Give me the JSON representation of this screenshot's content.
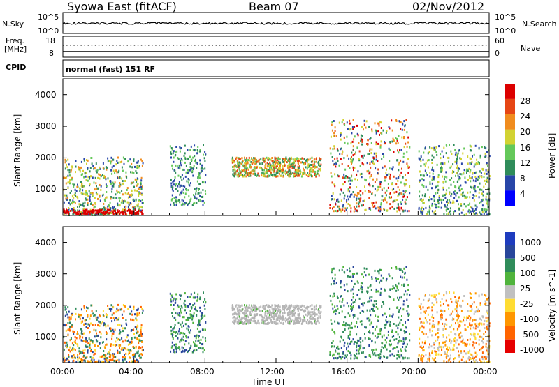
{
  "header": {
    "station": "Syowa East (fitACF)",
    "beam": "Beam 07",
    "date": "02/Nov/2012"
  },
  "noise_panel": {
    "left_label": "N.Sky",
    "right_label": "N.Search",
    "left_ticks": [
      "10^5",
      "10^0"
    ],
    "right_ticks": [
      "10^5",
      "10^0"
    ]
  },
  "freq_panel": {
    "left_label_line1": "Freq.",
    "left_label_line2": "[MHz]",
    "right_label": "Nave",
    "left_ticks": [
      "18",
      "8"
    ],
    "right_ticks": [
      "60",
      "0"
    ]
  },
  "cpid_panel": {
    "label": "CPID",
    "mode": "normal (fast) 151 RF"
  },
  "colors": {
    "power_scale": [
      "#0000ff",
      "#2846a8",
      "#2f8c5a",
      "#64c85a",
      "#d2d232",
      "#f08c1e",
      "#e64614",
      "#dc0000"
    ],
    "velocity_scale": [
      "#1e3cbe",
      "#28469b",
      "#2f8c5a",
      "#50b43c",
      "#c0c0c0",
      "#ffdc32",
      "#ff9600",
      "#ff6400",
      "#e60000"
    ],
    "ground_scatter": "#b4b4b4"
  },
  "chart_data": [
    {
      "type": "heatmap",
      "panel": "power",
      "xlabel": "",
      "ylabel": "Slant Range [km]",
      "ylim": [
        180,
        4500
      ],
      "yticks": [
        "1000",
        "2000",
        "3000",
        "4000"
      ],
      "colorbar_label": "Power [dB]",
      "colorbar_ticks": [
        "4",
        "8",
        "12",
        "16",
        "20",
        "24",
        "28"
      ],
      "features": [
        {
          "t_start": 0.0,
          "t_end": 4.5,
          "range_low": 180,
          "range_high": 2000,
          "dominant": "8-20 dB",
          "peak": "28+ dB near 300 km"
        },
        {
          "t_start": 6.0,
          "t_end": 8.0,
          "range_low": 500,
          "range_high": 2400,
          "dominant": "8-16 dB"
        },
        {
          "t_start": 9.5,
          "t_end": 14.5,
          "range_low": 1400,
          "range_high": 2000,
          "dominant": "12-24 dB"
        },
        {
          "t_start": 15.0,
          "t_end": 19.5,
          "range_low": 300,
          "range_high": 3200,
          "dominant": "12-28 dB"
        },
        {
          "t_start": 20.0,
          "t_end": 24.0,
          "range_low": 180,
          "range_high": 2400,
          "dominant": "8-20 dB"
        }
      ]
    },
    {
      "type": "heatmap",
      "panel": "velocity",
      "xlabel": "Time UT",
      "ylabel": "Slant Range [km]",
      "ylim": [
        180,
        4500
      ],
      "yticks": [
        "1000",
        "2000",
        "3000",
        "4000"
      ],
      "xticks": [
        "00:00",
        "04:00",
        "08:00",
        "12:00",
        "16:00",
        "20:00",
        "00:00"
      ],
      "colorbar_label": "Velocity [m s^-1]",
      "colorbar_ticks": [
        "1000",
        "500",
        "100",
        "25",
        "-25",
        "-100",
        "-500",
        "-1000"
      ],
      "features": [
        {
          "t_start": 0.0,
          "t_end": 4.5,
          "range_low": 180,
          "range_high": 2000,
          "dominant": "-100 to -500 m/s, some 100-500 m/s"
        },
        {
          "t_start": 6.0,
          "t_end": 8.0,
          "range_low": 500,
          "range_high": 2400,
          "dominant": "100-500 m/s"
        },
        {
          "t_start": 9.5,
          "t_end": 14.5,
          "range_low": 1400,
          "range_high": 2000,
          "dominant": "ground scatter (grey)"
        },
        {
          "t_start": 15.0,
          "t_end": 19.5,
          "range_low": 300,
          "range_high": 3200,
          "dominant": "100-500 m/s"
        },
        {
          "t_start": 20.0,
          "t_end": 24.0,
          "range_low": 180,
          "range_high": 2400,
          "dominant": "-25 to -500 m/s"
        }
      ]
    }
  ],
  "x_axis": {
    "label": "Time UT",
    "ticks": [
      "00:00",
      "04:00",
      "08:00",
      "12:00",
      "16:00",
      "20:00",
      "00:00"
    ]
  }
}
